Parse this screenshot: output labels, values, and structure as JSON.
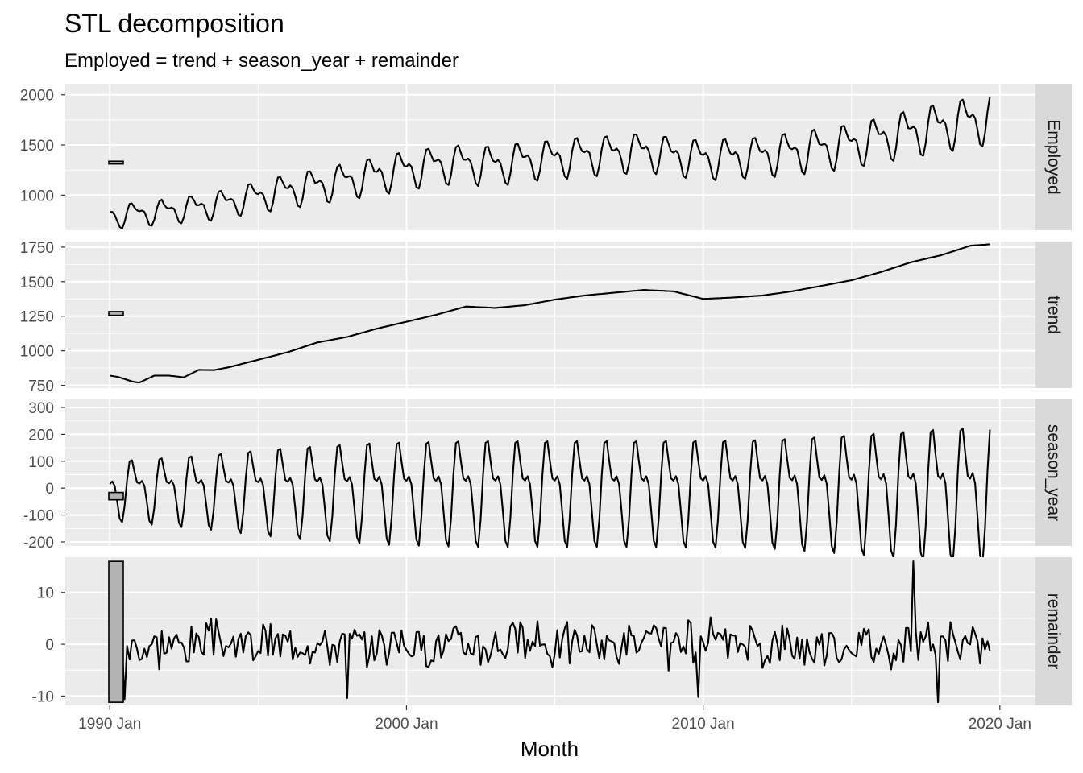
{
  "chart_data": {
    "type": "line",
    "title": "STL decomposition",
    "subtitle": "Employed = trend + season_year + remainder",
    "xlabel": "Month",
    "xlim": [
      1988.5,
      2021.2
    ],
    "x_breaks": [
      1990,
      2000,
      2010,
      2020
    ],
    "x_tick_labels": [
      "1990 Jan",
      "2000 Jan",
      "2010 Jan",
      "2020 Jan"
    ],
    "grid": true,
    "range_bars": true,
    "colors": {
      "panel_bg": "#ebebeb",
      "strip_bg": "#d9d9d9",
      "grid": "#ffffff",
      "line": "#000000",
      "range_bar": "#b3b3b3"
    },
    "series_start": 1990.0,
    "series_end": 2019.667,
    "panels": [
      {
        "name": "Employed",
        "ylim": [
          650,
          2110
        ],
        "y_breaks": [
          1000,
          1500,
          2000
        ],
        "y_tick_labels": [
          "1000",
          "1500",
          "2000"
        ],
        "trend_anchor": [
          [
            1990.0,
            810
          ],
          [
            1990.3,
            790
          ],
          [
            1990.8,
            820
          ],
          [
            1991.5,
            830
          ],
          [
            1992.0,
            850
          ],
          [
            1993.0,
            880
          ],
          [
            1994.0,
            930
          ],
          [
            1995.0,
            990
          ],
          [
            1996.0,
            1050
          ],
          [
            1997.0,
            1100
          ],
          [
            1998.0,
            1150
          ],
          [
            1999.0,
            1210
          ],
          [
            2000.0,
            1260
          ],
          [
            2001.0,
            1310
          ],
          [
            2002.0,
            1320
          ],
          [
            2003.0,
            1300
          ],
          [
            2004.0,
            1350
          ],
          [
            2005.0,
            1370
          ],
          [
            2006.0,
            1400
          ],
          [
            2007.0,
            1420
          ],
          [
            2008.0,
            1440
          ],
          [
            2009.0,
            1400
          ],
          [
            2010.0,
            1370
          ],
          [
            2011.0,
            1380
          ],
          [
            2012.0,
            1400
          ],
          [
            2013.0,
            1430
          ],
          [
            2014.0,
            1470
          ],
          [
            2015.0,
            1510
          ],
          [
            2016.0,
            1570
          ],
          [
            2017.0,
            1630
          ],
          [
            2018.0,
            1690
          ],
          [
            2019.0,
            1750
          ],
          [
            2019.667,
            1770
          ]
        ],
        "season_amp": [
          [
            1990.0,
            135
          ],
          [
            1993.0,
            165
          ],
          [
            1996.0,
            205
          ],
          [
            1999.0,
            230
          ],
          [
            2002.0,
            240
          ],
          [
            2008.0,
            240
          ],
          [
            2012.0,
            245
          ],
          [
            2015.0,
            270
          ],
          [
            2018.0,
            300
          ],
          [
            2019.667,
            305
          ]
        ]
      },
      {
        "name": "trend",
        "ylim": [
          730,
          1790
        ],
        "y_breaks": [
          750,
          1000,
          1250,
          1500,
          1750
        ],
        "y_tick_labels": [
          "750",
          "1000",
          "1250",
          "1500",
          "1750"
        ],
        "points": [
          [
            1990.0,
            820
          ],
          [
            1990.3,
            810
          ],
          [
            1990.8,
            775
          ],
          [
            1991.0,
            770
          ],
          [
            1991.5,
            820
          ],
          [
            1992.0,
            820
          ],
          [
            1992.5,
            808
          ],
          [
            1993.0,
            862
          ],
          [
            1993.5,
            860
          ],
          [
            1994.0,
            880
          ],
          [
            1995.0,
            935
          ],
          [
            1996.0,
            990
          ],
          [
            1997.0,
            1060
          ],
          [
            1998.0,
            1100
          ],
          [
            1999.0,
            1160
          ],
          [
            2000.0,
            1210
          ],
          [
            2001.0,
            1260
          ],
          [
            2002.0,
            1320
          ],
          [
            2003.0,
            1310
          ],
          [
            2004.0,
            1330
          ],
          [
            2005.0,
            1370
          ],
          [
            2006.0,
            1400
          ],
          [
            2007.0,
            1420
          ],
          [
            2008.0,
            1440
          ],
          [
            2009.0,
            1430
          ],
          [
            2010.0,
            1375
          ],
          [
            2011.0,
            1385
          ],
          [
            2012.0,
            1400
          ],
          [
            2013.0,
            1430
          ],
          [
            2014.0,
            1470
          ],
          [
            2015.0,
            1510
          ],
          [
            2016.0,
            1570
          ],
          [
            2017.0,
            1640
          ],
          [
            2018.0,
            1690
          ],
          [
            2019.0,
            1760
          ],
          [
            2019.667,
            1770
          ]
        ]
      },
      {
        "name": "season_year",
        "ylim": [
          -215,
          330
        ],
        "y_breaks": [
          -200,
          -100,
          0,
          100,
          200,
          300
        ],
        "y_tick_labels": [
          "-200",
          "-100",
          "0",
          "100",
          "200",
          "300"
        ],
        "amp_points": [
          [
            1990.0,
            135
          ],
          [
            1993.0,
            165
          ],
          [
            1996.0,
            205
          ],
          [
            1999.0,
            230
          ],
          [
            2002.0,
            240
          ],
          [
            2008.0,
            240
          ],
          [
            2012.0,
            245
          ],
          [
            2015.0,
            270
          ],
          [
            2018.0,
            300
          ],
          [
            2019.667,
            310
          ]
        ]
      },
      {
        "name": "remainder",
        "ylim": [
          -11.8,
          16.8
        ],
        "y_breaks": [
          -10,
          0,
          10
        ],
        "y_tick_labels": [
          "-10",
          "0",
          "10"
        ],
        "amp": 5.5,
        "min_value": -11.2,
        "max_value": 16.0
      }
    ]
  }
}
